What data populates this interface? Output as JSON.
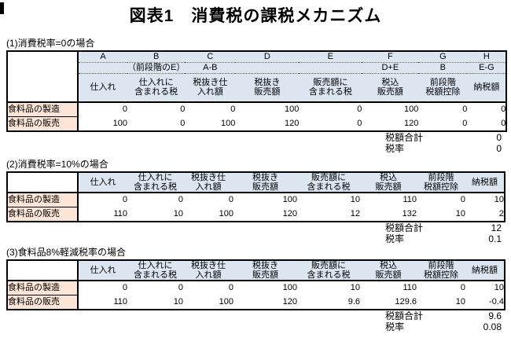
{
  "page": {
    "title": "図表1　消費税の課税メカニズム"
  },
  "style": {
    "header_fill": "#dce6f1",
    "label_fill": "#fce4d6",
    "border": "#000000"
  },
  "columns": {
    "letters": [
      "A",
      "B",
      "C",
      "D",
      "E",
      "F",
      "G",
      "H"
    ],
    "formulas": [
      "",
      "（前段階のE）",
      "A-B",
      "",
      "",
      "D+E",
      "B",
      "E-G"
    ],
    "names": [
      [
        "仕入れ"
      ],
      [
        "仕入れに",
        "含まれる税"
      ],
      [
        "税抜き仕",
        "入れ額"
      ],
      [
        "税抜き",
        "販売額"
      ],
      [
        "販売額に",
        "含まれる税"
      ],
      [
        "税込",
        "販売額"
      ],
      [
        "前段階",
        "税額控除"
      ],
      [
        "納税額"
      ]
    ]
  },
  "sections": [
    {
      "label": "(1)消費税率=0の場合",
      "rows": [
        {
          "label": "食料品の製造",
          "values": [
            "0",
            "0",
            "0",
            "100",
            "0",
            "100",
            "0",
            "0"
          ]
        },
        {
          "label": "食料品の販売",
          "values": [
            "100",
            "0",
            "100",
            "120",
            "0",
            "120",
            "0",
            "0"
          ]
        }
      ],
      "summary": [
        {
          "label": "税額合計",
          "value": "0"
        },
        {
          "label": "税率",
          "value": "0"
        }
      ]
    },
    {
      "label": "(2)消費税率=10%の場合",
      "rows": [
        {
          "label": "食料品の製造",
          "values": [
            "0",
            "0",
            "0",
            "100",
            "10",
            "110",
            "0",
            "10"
          ]
        },
        {
          "label": "食料品の販売",
          "values": [
            "110",
            "10",
            "100",
            "120",
            "12",
            "132",
            "10",
            "2"
          ]
        }
      ],
      "summary": [
        {
          "label": "税額合計",
          "value": "12"
        },
        {
          "label": "税率",
          "value": "0.1"
        }
      ]
    },
    {
      "label": "(3)食料品8%軽減税率の場合",
      "rows": [
        {
          "label": "食料品の製造",
          "values": [
            "0",
            "0",
            "0",
            "100",
            "10",
            "110",
            "0",
            "10"
          ]
        },
        {
          "label": "食料品の販売",
          "values": [
            "110",
            "10",
            "100",
            "120",
            "9.6",
            "129.6",
            "10",
            "-0.4"
          ]
        }
      ],
      "summary": [
        {
          "label": "税額合計",
          "value": "9.6"
        },
        {
          "label": "税率",
          "value": "0.08"
        }
      ]
    }
  ]
}
